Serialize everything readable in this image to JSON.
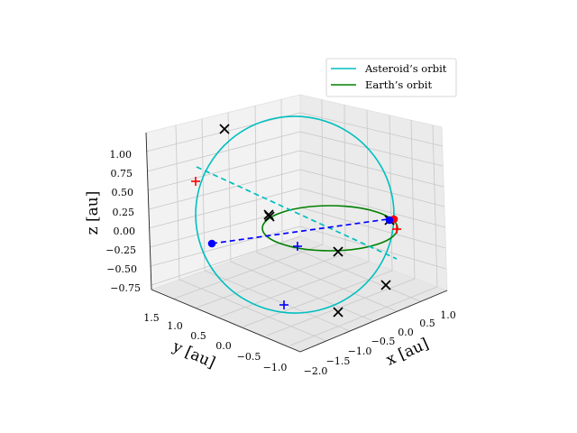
{
  "chart_data": {
    "type": "line",
    "projection": "3d",
    "axes": {
      "x": {
        "label": "x [au]",
        "ticks": [
          "−2.0",
          "−1.5",
          "−1.0",
          "−0.5",
          "0.0",
          "0.5",
          "1.0"
        ]
      },
      "y": {
        "label": "y [au]",
        "ticks": [
          "−1.0",
          "−0.5",
          "0.0",
          "0.5",
          "1.0",
          "1.5"
        ]
      },
      "z": {
        "label": "z [au]",
        "ticks": [
          "−0.75",
          "−0.50",
          "−0.25",
          "0.00",
          "0.25",
          "0.50",
          "0.75",
          "1.00"
        ]
      }
    },
    "grid": true,
    "legend_position": "top-right",
    "series": [
      {
        "name": "Asteroid’s orbit",
        "color": "#00bfbf",
        "kind": "ellipse"
      },
      {
        "name": "Earth’s orbit",
        "color": "#008000",
        "kind": "ellipse"
      }
    ],
    "markers": {
      "black_x_count": 7,
      "red_plus_count": 2,
      "blue_plus_count": 2,
      "red_dot_count": 1,
      "blue_dot_count": 2,
      "colors": {
        "black": "#000000",
        "red": "#ff0000",
        "blue": "#0000ff",
        "cyan": "#00bfbf"
      }
    }
  }
}
